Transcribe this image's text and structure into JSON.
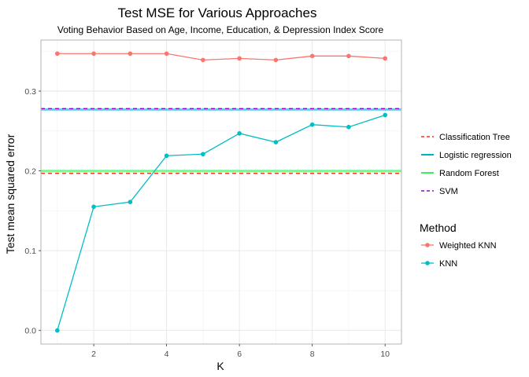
{
  "chart_data": {
    "type": "line",
    "title": "Test MSE for Various Approaches",
    "subtitle": "Voting Behavior Based on Age, Income, Education, & Depression Index Score",
    "xlabel": "K",
    "ylabel": "Test mean squared error",
    "xlim": [
      0.55,
      10.45
    ],
    "ylim": [
      -0.017,
      0.364
    ],
    "x_ticks": [
      2,
      4,
      6,
      8,
      10
    ],
    "x_tick_labels": [
      "2",
      "4",
      "6",
      "8",
      "10"
    ],
    "y_ticks": [
      0.0,
      0.1,
      0.2,
      0.3
    ],
    "y_tick_labels": [
      "0.0",
      "0.1",
      "0.2",
      "0.3"
    ],
    "grid": true,
    "legend_position": "right",
    "x": [
      1,
      2,
      3,
      4,
      5,
      6,
      7,
      8,
      9,
      10
    ],
    "series": [
      {
        "name": "Weighted KNN",
        "color": "#F8766D",
        "values": [
          0.347,
          0.347,
          0.347,
          0.347,
          0.339,
          0.341,
          0.339,
          0.344,
          0.344,
          0.341
        ]
      },
      {
        "name": "KNN",
        "color": "#00BFC4",
        "values": [
          0.0,
          0.155,
          0.161,
          0.219,
          0.221,
          0.247,
          0.236,
          0.258,
          0.255,
          0.27
        ]
      }
    ],
    "reference_lines": [
      {
        "name": "Classification Tree",
        "value": 0.197,
        "color": "#FF2D1A",
        "dash": true
      },
      {
        "name": "Logistic regression",
        "value": 0.277,
        "color": "#00B3C4",
        "dash": false
      },
      {
        "name": "Random Forest",
        "value": 0.2,
        "color": "#34F55E",
        "dash": false
      },
      {
        "name": "SVM",
        "value": 0.278,
        "color": "#9400D3",
        "dash": true
      }
    ],
    "legend_line_entries": [
      "Classification Tree",
      "Logistic regression",
      "Random Forest",
      "SVM"
    ],
    "legend_title": "Method",
    "legend_point_entries": [
      "Weighted KNN",
      "KNN"
    ]
  }
}
